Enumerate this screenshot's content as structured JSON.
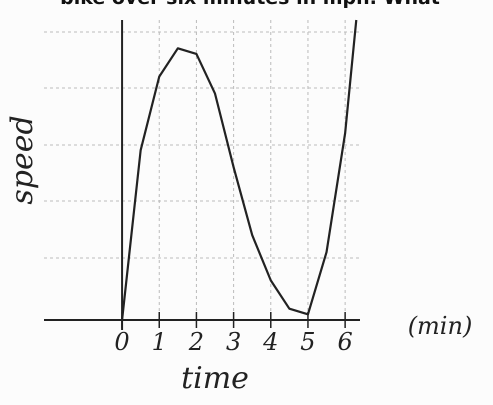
{
  "chart_data": {
    "type": "line",
    "title": "bike over six minutes in mph. What",
    "x_label": "time",
    "y_label": "speed",
    "x_unit": "(min)",
    "x": [
      0,
      0.5,
      1,
      1.5,
      2,
      2.5,
      3,
      3.5,
      4,
      4.5,
      5,
      5.5,
      6,
      6.3
    ],
    "values": [
      0,
      3.0,
      4.3,
      4.8,
      4.7,
      4.0,
      2.7,
      1.5,
      0.7,
      0.2,
      0.1,
      1.2,
      3.3,
      5.3
    ],
    "color": "#222222",
    "xlim": [
      -2.1,
      6.4
    ],
    "ylim": [
      0,
      5.3
    ],
    "xticks": [
      0,
      1,
      2,
      3,
      4,
      5,
      6
    ],
    "grid": true
  }
}
